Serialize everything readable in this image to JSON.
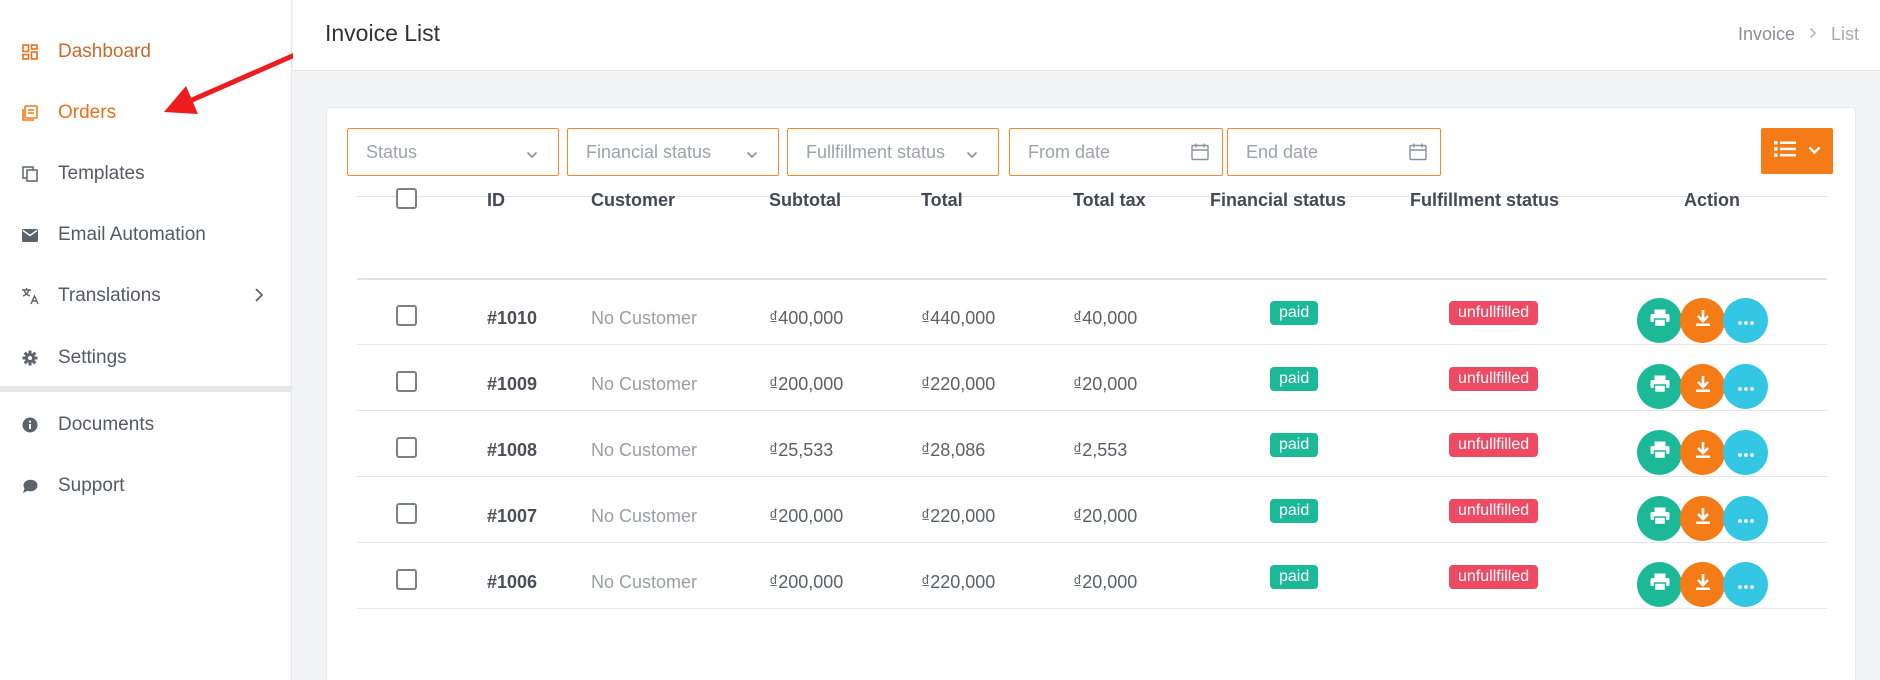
{
  "colors": {
    "accent": "#f47b15",
    "paid": "#1cb999",
    "unfulfilled": "#ef4a64",
    "more": "#34c7e4"
  },
  "sidebar": {
    "items": [
      {
        "label": "Dashboard",
        "icon": "dashboard-icon"
      },
      {
        "label": "Orders",
        "icon": "orders-icon",
        "active": true
      },
      {
        "label": "Templates",
        "icon": "templates-icon"
      },
      {
        "label": "Email Automation",
        "icon": "email-icon"
      },
      {
        "label": "Translations",
        "icon": "translate-icon",
        "has_submenu": true
      },
      {
        "label": "Settings",
        "icon": "gear-icon"
      },
      {
        "label": "Documents",
        "icon": "info-icon"
      },
      {
        "label": "Support",
        "icon": "chat-bubble-icon"
      }
    ]
  },
  "header": {
    "title": "Invoice List",
    "breadcrumb": [
      "Invoice",
      "List"
    ]
  },
  "filters": {
    "status": "Status",
    "financial_status": "Financial status",
    "fulfillment_status": "Fullfillment status",
    "from_date": "From date",
    "end_date": "End date"
  },
  "table": {
    "columns": [
      "ID",
      "Customer",
      "Subtotal",
      "Total",
      "Total tax",
      "Financial status",
      "Fulfillment status",
      "Action"
    ],
    "rows": [
      {
        "id": "#1010",
        "customer": "No Customer",
        "subtotal": "₫400,000",
        "total": "₫440,000",
        "tax": "₫40,000",
        "financial": "paid",
        "fulfillment": "unfullfilled"
      },
      {
        "id": "#1009",
        "customer": "No Customer",
        "subtotal": "₫200,000",
        "total": "₫220,000",
        "tax": "₫20,000",
        "financial": "paid",
        "fulfillment": "unfullfilled"
      },
      {
        "id": "#1008",
        "customer": "No Customer",
        "subtotal": "₫25,533",
        "total": "₫28,086",
        "tax": "₫2,553",
        "financial": "paid",
        "fulfillment": "unfullfilled"
      },
      {
        "id": "#1007",
        "customer": "No Customer",
        "subtotal": "₫200,000",
        "total": "₫220,000",
        "tax": "₫20,000",
        "financial": "paid",
        "fulfillment": "unfullfilled"
      },
      {
        "id": "#1006",
        "customer": "No Customer",
        "subtotal": "₫200,000",
        "total": "₫220,000",
        "tax": "₫20,000",
        "financial": "paid",
        "fulfillment": "unfullfilled"
      }
    ]
  }
}
